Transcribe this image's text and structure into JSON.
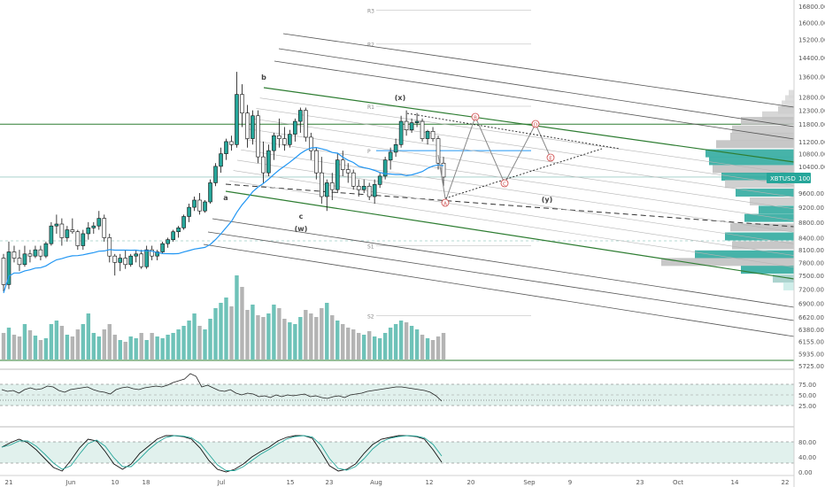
{
  "symbol": "XBTUSD",
  "last_price": "10071.9",
  "colors": {
    "up": "#26a69a",
    "down": "#999999",
    "ma": "#2196f3",
    "channel": "#2e7d32",
    "label": "#888888",
    "price_tag": "#26a69a",
    "osc_fill": "#d4ebe6"
  },
  "price_axis": {
    "ticks": [
      "16800.00",
      "16000.00",
      "15200.00",
      "14400.00",
      "13600.00",
      "12800.00",
      "12300.00",
      "11800.00",
      "11200.00",
      "10800.00",
      "10400.00",
      "9600.00",
      "9200.00",
      "8800.00",
      "8400.00",
      "8100.00",
      "7800.00",
      "7500.00",
      "7200.00",
      "6900.00",
      "6620.00",
      "6380.00",
      "6155.00",
      "5935.00",
      "5725.00"
    ]
  },
  "osc1_axis": {
    "ticks": [
      "75.00",
      "50.00",
      "25.00"
    ]
  },
  "osc2_axis": {
    "ticks": [
      "80.00",
      "40.00",
      "0.00"
    ]
  },
  "time_axis": {
    "ticks": [
      "21",
      "Jun",
      "10",
      "18",
      "Jul",
      "15",
      "23",
      "Aug",
      "12",
      "20",
      "Sep",
      "9",
      "23",
      "Oct",
      "14",
      "22"
    ]
  },
  "pivot_labels": {
    "r3": "R3",
    "r2": "R2",
    "r1": "R1",
    "p": "P",
    "s1": "S1",
    "s2": "S2"
  },
  "wave_labels": {
    "a": "a",
    "b": "b",
    "c": "c",
    "w": "(w)",
    "x": "(x)",
    "y": "(y)",
    "A": "A",
    "B": "B",
    "C": "C",
    "D": "D",
    "E": "E"
  },
  "chart_data": {
    "type": "candlestick",
    "title": "",
    "symbol": "XBTUSD",
    "timeframe": "1D",
    "y_scale": "log",
    "x_start": "May 14",
    "x_end": "Aug 14",
    "candles": [
      [
        7900,
        8000,
        7150,
        7300
      ],
      [
        7300,
        8300,
        7200,
        8050
      ],
      [
        8050,
        8200,
        7800,
        7900
      ],
      [
        7900,
        8100,
        7600,
        7750
      ],
      [
        7750,
        8200,
        7700,
        8000
      ],
      [
        8000,
        8100,
        7800,
        7950
      ],
      [
        7950,
        8200,
        7900,
        8100
      ],
      [
        8100,
        8200,
        7850,
        7950
      ],
      [
        7950,
        8300,
        7900,
        8250
      ],
      [
        8250,
        8800,
        8200,
        8700
      ],
      [
        8700,
        9000,
        8500,
        8750
      ],
      [
        8750,
        8900,
        8200,
        8400
      ],
      [
        8400,
        8700,
        8300,
        8600
      ],
      [
        8600,
        8900,
        8500,
        8550
      ],
      [
        8550,
        8600,
        8100,
        8200
      ],
      [
        8200,
        8600,
        8100,
        8500
      ],
      [
        8500,
        8800,
        8350,
        8650
      ],
      [
        8650,
        8800,
        8500,
        8700
      ],
      [
        8700,
        9100,
        8600,
        8900
      ],
      [
        8900,
        9000,
        8300,
        8400
      ],
      [
        8400,
        8500,
        7800,
        7950
      ],
      [
        7950,
        8000,
        7500,
        7800
      ],
      [
        7800,
        8000,
        7600,
        7900
      ],
      [
        7900,
        8100,
        7650,
        7750
      ],
      [
        7750,
        8000,
        7700,
        7950
      ],
      [
        7950,
        8100,
        7800,
        8000
      ],
      [
        8000,
        8100,
        7650,
        7700
      ],
      [
        7700,
        8200,
        7650,
        8100
      ],
      [
        8100,
        8200,
        7850,
        7950
      ],
      [
        7950,
        8100,
        7850,
        8050
      ],
      [
        8050,
        8300,
        8000,
        8250
      ],
      [
        8250,
        8400,
        8150,
        8350
      ],
      [
        8350,
        8600,
        8300,
        8550
      ],
      [
        8550,
        8700,
        8400,
        8650
      ],
      [
        8650,
        9000,
        8600,
        8950
      ],
      [
        8950,
        9300,
        8800,
        9200
      ],
      [
        9200,
        9500,
        9100,
        9400
      ],
      [
        9400,
        9600,
        9000,
        9100
      ],
      [
        9100,
        9400,
        9050,
        9350
      ],
      [
        9350,
        10000,
        9300,
        9900
      ],
      [
        9900,
        10500,
        9800,
        10400
      ],
      [
        10400,
        11000,
        10200,
        10800
      ],
      [
        10800,
        11300,
        10600,
        11200
      ],
      [
        11200,
        11400,
        10900,
        11100
      ],
      [
        11100,
        13800,
        11000,
        12900
      ],
      [
        12900,
        13300,
        11700,
        12200
      ],
      [
        12200,
        12500,
        11000,
        11300
      ],
      [
        11300,
        12300,
        11100,
        12100
      ],
      [
        12100,
        12300,
        10500,
        10700
      ],
      [
        10700,
        11200,
        9900,
        10200
      ],
      [
        10200,
        11100,
        10100,
        10900
      ],
      [
        10900,
        11500,
        10600,
        11400
      ],
      [
        11400,
        12000,
        11000,
        11300
      ],
      [
        11300,
        11700,
        10900,
        11100
      ],
      [
        11100,
        11600,
        11000,
        11450
      ],
      [
        11450,
        12000,
        11200,
        11900
      ],
      [
        11900,
        12400,
        11500,
        12300
      ],
      [
        12300,
        12400,
        11200,
        11350
      ],
      [
        11350,
        11500,
        10600,
        10900
      ],
      [
        10900,
        11000,
        10000,
        10200
      ],
      [
        10200,
        10700,
        9300,
        9500
      ],
      [
        9500,
        10000,
        9100,
        9900
      ],
      [
        9900,
        10200,
        9400,
        9700
      ],
      [
        9700,
        10800,
        9600,
        10600
      ],
      [
        10600,
        10900,
        10100,
        10300
      ],
      [
        10300,
        10500,
        9900,
        10200
      ],
      [
        10200,
        10300,
        9700,
        9800
      ],
      [
        9800,
        10000,
        9500,
        9700
      ],
      [
        9700,
        10000,
        9600,
        9800
      ],
      [
        9800,
        9900,
        9400,
        9500
      ],
      [
        9500,
        10000,
        9300,
        9850
      ],
      [
        9850,
        10200,
        9750,
        10100
      ],
      [
        10100,
        10700,
        10000,
        10600
      ],
      [
        10600,
        11000,
        10300,
        10850
      ],
      [
        10850,
        11300,
        10700,
        11100
      ],
      [
        11100,
        12100,
        11000,
        11900
      ],
      [
        11900,
        12300,
        11400,
        11600
      ],
      [
        11600,
        12000,
        11500,
        11850
      ],
      [
        11850,
        12200,
        11700,
        11900
      ],
      [
        11900,
        12000,
        11200,
        11300
      ],
      [
        11300,
        11600,
        11100,
        11550
      ],
      [
        11550,
        11700,
        11200,
        11300
      ],
      [
        11300,
        11400,
        10300,
        10500
      ],
      [
        10500,
        10700,
        9800,
        10071.9
      ]
    ],
    "ma20_approx": "blue moving average below price",
    "pivots": {
      "R3": 16600,
      "R2": 15000,
      "R1": 12450,
      "P": 10900,
      "S1": 8200,
      "S2": 6650
    },
    "horizontal_levels": [
      11800,
      10071.9
    ],
    "volume_profile": "right-side histogram, max near 7900 and 10600",
    "osc1": {
      "name": "",
      "levels": [
        75,
        50,
        25
      ],
      "last": 47
    },
    "osc2": {
      "name": "",
      "levels": [
        80,
        40,
        0
      ],
      "last": 5
    }
  }
}
